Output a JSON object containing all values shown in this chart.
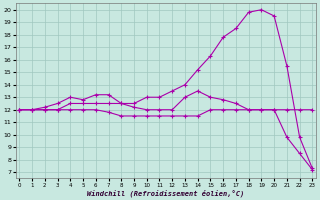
{
  "xlabel": "Windchill (Refroidissement éolien,°C)",
  "bg_color": "#c8e8e0",
  "line_color": "#aa00aa",
  "grid_color": "#a0c8c0",
  "x_ticks": [
    0,
    1,
    2,
    3,
    4,
    5,
    6,
    7,
    8,
    9,
    10,
    11,
    12,
    13,
    14,
    15,
    16,
    17,
    18,
    19,
    20,
    21,
    22,
    23
  ],
  "y_ticks": [
    7,
    8,
    9,
    10,
    11,
    12,
    13,
    14,
    15,
    16,
    17,
    18,
    19,
    20
  ],
  "ylim": [
    6.5,
    20.5
  ],
  "xlim": [
    -0.3,
    23.3
  ],
  "line1_x": [
    0,
    1,
    2,
    3,
    4,
    5,
    6,
    7,
    8,
    9,
    10,
    11,
    12,
    13,
    14,
    15,
    16,
    17,
    18,
    19,
    20,
    21,
    22,
    23
  ],
  "line1_y": [
    12,
    12,
    12.2,
    12.5,
    13,
    12.8,
    13.2,
    13.2,
    12.5,
    12.2,
    12,
    12,
    12,
    13,
    13.5,
    13,
    12.8,
    12.5,
    12,
    12,
    12,
    9.8,
    8.5,
    7.2
  ],
  "line2_x": [
    0,
    1,
    2,
    3,
    4,
    5,
    6,
    7,
    8,
    9,
    10,
    11,
    12,
    13,
    14,
    15,
    16,
    17,
    18,
    19,
    20,
    21,
    22,
    23
  ],
  "line2_y": [
    12,
    12,
    12,
    12,
    12.5,
    12.5,
    12.5,
    12.5,
    12.5,
    12.5,
    13,
    13,
    13.5,
    14,
    15.2,
    16.3,
    17.8,
    18.5,
    19.8,
    20,
    19.5,
    15.5,
    9.8,
    7.3
  ],
  "line3_x": [
    0,
    1,
    2,
    3,
    4,
    5,
    6,
    7,
    8,
    9,
    10,
    11,
    12,
    13,
    14,
    15,
    16,
    17,
    18,
    19,
    20,
    21,
    22,
    23
  ],
  "line3_y": [
    12,
    12,
    12,
    12,
    12,
    12,
    12,
    11.8,
    11.5,
    11.5,
    11.5,
    11.5,
    11.5,
    11.5,
    11.5,
    12,
    12,
    12,
    12,
    12,
    12,
    12,
    12,
    12
  ]
}
